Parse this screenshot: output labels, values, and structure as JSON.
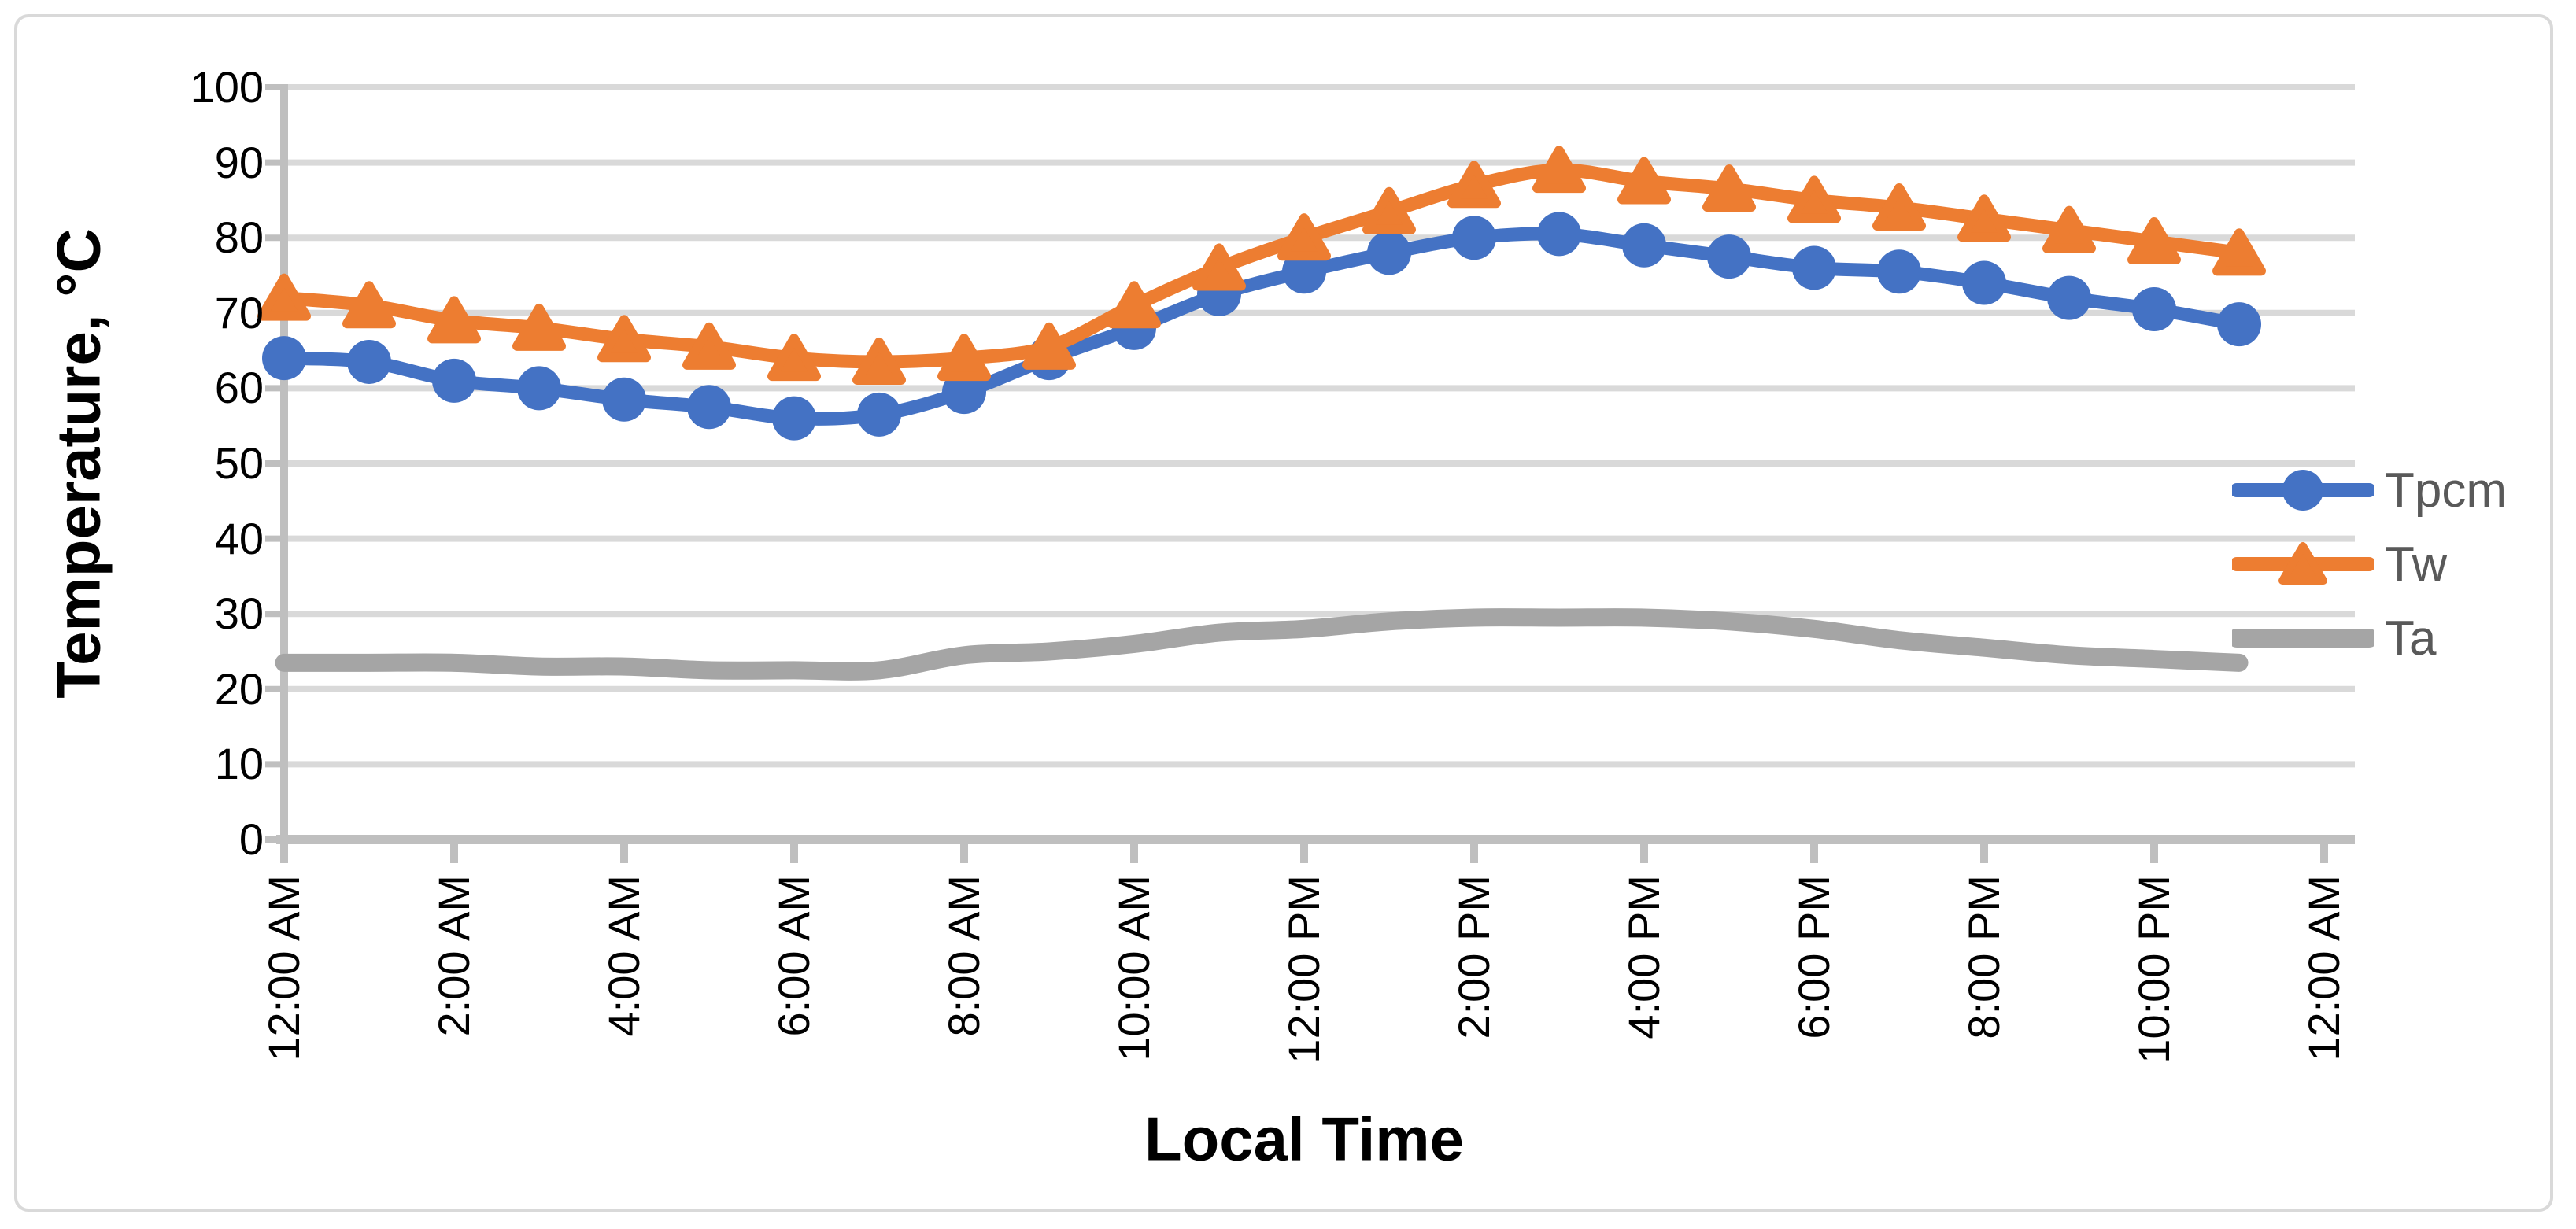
{
  "figure": {
    "description": "Excel-style smoothed line chart of temperatures over a 24-hour period",
    "background": "#FFFFFF",
    "border_color": "#D9D9D9"
  },
  "chart_data": {
    "type": "line",
    "title": "",
    "xlabel": "Local Time",
    "ylabel": "Temperature, °C",
    "x": [
      "12:00 AM",
      "1:00 AM",
      "2:00 AM",
      "3:00 AM",
      "4:00 AM",
      "5:00 AM",
      "6:00 AM",
      "7:00 AM",
      "8:00 AM",
      "9:00 AM",
      "10:00 AM",
      "11:00 AM",
      "12:00 PM",
      "1:00 PM",
      "2:00 PM",
      "3:00 PM",
      "4:00 PM",
      "5:00 PM",
      "6:00 PM",
      "7:00 PM",
      "8:00 PM",
      "9:00 PM",
      "10:00 PM",
      "11:00 PM"
    ],
    "x_axis_tick_labels": [
      "12:00 AM",
      "2:00 AM",
      "4:00 AM",
      "6:00 AM",
      "8:00 AM",
      "10:00 AM",
      "12:00 PM",
      "2:00 PM",
      "4:00 PM",
      "6:00 PM",
      "8:00 PM",
      "10:00 PM",
      "12:00 AM"
    ],
    "ylim": [
      0,
      100
    ],
    "y_ticks": [
      0,
      10,
      20,
      30,
      40,
      50,
      60,
      70,
      80,
      90,
      100
    ],
    "grid": "horizontal-only",
    "smooth_lines": true,
    "legend_position": "right-inside",
    "series": [
      {
        "name": "Tpcm",
        "color": "#4472C4",
        "marker": "circle",
        "values": [
          64,
          63.5,
          61,
          60,
          58.5,
          57.5,
          56,
          56.5,
          59.5,
          64,
          68,
          72.5,
          75.5,
          78,
          80,
          80.5,
          79,
          77.5,
          76,
          75.5,
          74,
          72,
          70.5,
          68.5
        ]
      },
      {
        "name": "Tw",
        "color": "#ED7D31",
        "marker": "triangle",
        "values": [
          72,
          71,
          69,
          68,
          66.5,
          65.5,
          64,
          63.5,
          64,
          65.5,
          71,
          76,
          80,
          83.5,
          87,
          89,
          87.5,
          86.5,
          85,
          84,
          82.5,
          81,
          79.5,
          78
        ]
      },
      {
        "name": "Ta",
        "color": "#A5A5A5",
        "marker": "none",
        "values": [
          23.5,
          23.5,
          23.5,
          23,
          23,
          22.5,
          22.5,
          22.5,
          24.5,
          25,
          26,
          27.5,
          28,
          29,
          29.5,
          29.5,
          29.5,
          29,
          28,
          26.5,
          25.5,
          24.5,
          24,
          23.5
        ]
      }
    ]
  },
  "styles": {
    "gridline_color": "#D9D9D9",
    "axis_line_color": "#BFBFBF",
    "tick_mark_color": "#BFBFBF",
    "tick_label_color": "#000000",
    "axis_title_color": "#000000",
    "legend_text_color": "#595959"
  }
}
